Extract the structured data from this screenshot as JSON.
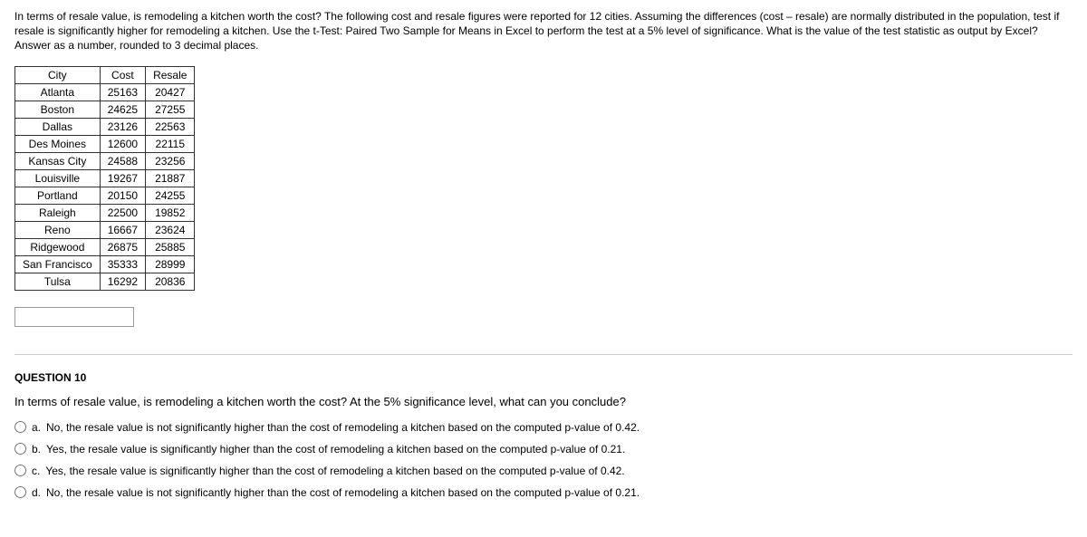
{
  "intro_text": "In terms of resale value, is remodeling a kitchen worth the cost?  The following cost and resale figures were reported for 12 cities.  Assuming the differences (cost – resale) are normally distributed in the population, test if resale is significantly higher for remodeling a kitchen.  Use the t-Test: Paired Two Sample for Means in Excel to perform the test at a 5% level of significance. What is the value of the test statistic as output by Excel?  Answer as a number, rounded to 3 decimal places.",
  "table": {
    "headers": [
      "City",
      "Cost",
      "Resale"
    ],
    "rows": [
      [
        "Atlanta",
        "25163",
        "20427"
      ],
      [
        "Boston",
        "24625",
        "27255"
      ],
      [
        "Dallas",
        "23126",
        "22563"
      ],
      [
        "Des Moines",
        "12600",
        "22115"
      ],
      [
        "Kansas City",
        "24588",
        "23256"
      ],
      [
        "Louisville",
        "19267",
        "21887"
      ],
      [
        "Portland",
        "20150",
        "24255"
      ],
      [
        "Raleigh",
        "22500",
        "19852"
      ],
      [
        "Reno",
        "16667",
        "23624"
      ],
      [
        "Ridgewood",
        "26875",
        "25885"
      ],
      [
        "San Francisco",
        "35333",
        "28999"
      ],
      [
        "Tulsa",
        "16292",
        "20836"
      ]
    ]
  },
  "question10": {
    "label": "QUESTION 10",
    "text": "In terms of resale value, is remodeling a kitchen worth the cost?  At the 5% significance level, what can you conclude?",
    "options": {
      "a": "No, the resale value is not significantly higher than the cost of remodeling a kitchen based on the computed p-value of 0.42.",
      "b": "Yes, the resale value is significantly higher than the cost of remodeling a kitchen based on the computed p-value of 0.21.",
      "c": "Yes, the resale value is significantly higher than the cost of remodeling a kitchen based on the computed p-value of 0.42.",
      "d": "No, the resale value is not significantly higher than the cost of remodeling a kitchen based on the computed p-value of 0.21."
    }
  }
}
